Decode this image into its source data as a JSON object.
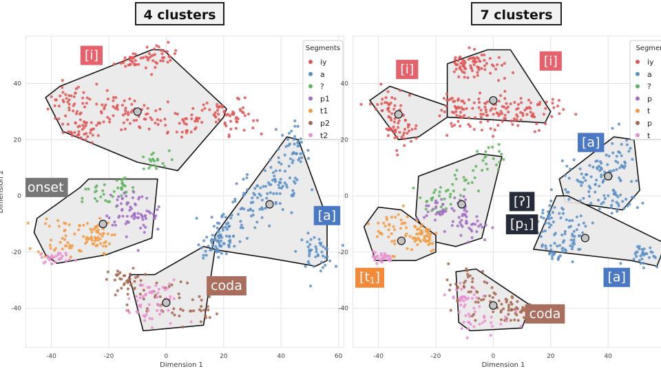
{
  "panels": [
    {
      "title": "4 clusters"
    },
    {
      "title": "7 clusters"
    }
  ],
  "colors": {
    "iy": "#e05555",
    "a": "#5b8fc7",
    "?": "#62b35e",
    "p1": "#a06cc4",
    "t1": "#f29a3f",
    "p2": "#a6674f",
    "t2": "#ea8ecf",
    "label_red": "#e8606a",
    "label_blue": "#4a78c5",
    "label_gray": "#767676",
    "label_orange": "#f28a3a",
    "label_brown": "#aa6e5e",
    "label_dark": "#252c38"
  },
  "chart_data": [
    {
      "type": "scatter",
      "title": "4 clusters",
      "xlabel": "Dimension 1",
      "ylabel": "Dimension 2",
      "xlim": [
        -49,
        62
      ],
      "ylim": [
        -54,
        57
      ],
      "xticks": [
        -40,
        -20,
        0,
        20,
        40,
        60
      ],
      "yticks": [
        -40,
        -20,
        0,
        20,
        40
      ],
      "grid": true,
      "legend": {
        "title": "Segments",
        "placement": "top-right",
        "entries": [
          "iy",
          "a",
          "?",
          "p1",
          "t1",
          "p2",
          "t2"
        ]
      },
      "series": [
        {
          "name": "iy",
          "clusters": [
            [
              -35,
              33,
              3,
              4
            ],
            [
              -28,
              23,
              3,
              2
            ],
            [
              -18,
              30,
              4,
              3
            ],
            [
              -8,
              28,
              4,
              3
            ],
            [
              5,
              26,
              5,
              3
            ],
            [
              18,
              30,
              5,
              3
            ],
            [
              25,
              28,
              3,
              3
            ],
            [
              -12,
              48,
              3,
              1.5
            ],
            [
              -2,
              50,
              3,
              2
            ],
            [
              -28,
              31,
              4,
              4
            ]
          ],
          "n": 300
        },
        {
          "name": "a",
          "clusters": [
            [
              44,
              15,
              3,
              5
            ],
            [
              40,
              4,
              4,
              6
            ],
            [
              30,
              -3,
              4,
              5
            ],
            [
              22,
              -12,
              4,
              4
            ],
            [
              18,
              -17,
              3,
              2
            ],
            [
              52,
              -20,
              3,
              3
            ]
          ],
          "n": 260
        },
        {
          "name": "?",
          "clusters": [
            [
              -5,
              12,
              3,
              2
            ],
            [
              -23,
              -1,
              3,
              3
            ],
            [
              -15,
              3,
              2,
              3
            ]
          ],
          "n": 60
        },
        {
          "name": "p1",
          "clusters": [
            [
              -13,
              -4,
              4,
              4
            ],
            [
              -9,
              -8,
              4,
              4
            ]
          ],
          "n": 70
        },
        {
          "name": "t1",
          "clusters": [
            [
              -35,
              -14,
              5,
              4
            ],
            [
              -25,
              -15,
              3,
              3
            ]
          ],
          "n": 90
        },
        {
          "name": "p2",
          "clusters": [
            [
              -6,
              -35,
              6,
              4
            ],
            [
              8,
              -40,
              5,
              3
            ],
            [
              -14,
              -30,
              3,
              2
            ]
          ],
          "n": 90
        },
        {
          "name": "t2",
          "clusters": [
            [
              -5,
              -42,
              6,
              3
            ],
            [
              -4,
              -34,
              4,
              2
            ],
            [
              -38,
              -22,
              3,
              1
            ]
          ],
          "n": 80
        }
      ],
      "hulls": [
        [
          [
            -42,
            35
          ],
          [
            -37,
            39
          ],
          [
            -5,
            52
          ],
          [
            -1,
            52
          ],
          [
            21,
            31
          ],
          [
            20,
            28
          ],
          [
            4,
            9
          ],
          [
            -10,
            12
          ],
          [
            -36,
            23
          ],
          [
            -42,
            35
          ]
        ],
        [
          [
            -42,
            -21
          ],
          [
            -46,
            -13
          ],
          [
            -45,
            -8
          ],
          [
            -30,
            3
          ],
          [
            -27,
            6
          ],
          [
            -3,
            6
          ],
          [
            -5,
            -15
          ],
          [
            -21,
            -21
          ],
          [
            -38,
            -24
          ],
          [
            -42,
            -21
          ]
        ],
        [
          [
            16,
            -19
          ],
          [
            17,
            -14
          ],
          [
            42,
            21
          ],
          [
            46,
            20
          ],
          [
            56,
            -8
          ],
          [
            56,
            -23
          ],
          [
            52,
            -25
          ],
          [
            35,
            -22
          ],
          [
            16,
            -19
          ]
        ],
        [
          [
            -12,
            -32
          ],
          [
            -13,
            -29
          ],
          [
            -12,
            -28
          ],
          [
            -4,
            -28
          ],
          [
            13,
            -18
          ],
          [
            17,
            -19
          ],
          [
            13,
            -46
          ],
          [
            -8,
            -48
          ],
          [
            -12,
            -32
          ]
        ]
      ],
      "centroids": [
        [
          -10,
          30
        ],
        [
          -22,
          -10
        ],
        [
          36,
          -3
        ],
        [
          0,
          -38
        ]
      ],
      "annotations": [
        {
          "text": "[i]",
          "x": -26,
          "y": 50,
          "color": "label_red"
        },
        {
          "text": "onset",
          "x": -42,
          "y": 3,
          "color": "label_gray"
        },
        {
          "text": "[a]",
          "x": 56,
          "y": -7,
          "color": "label_blue"
        },
        {
          "text": "coda",
          "x": 21,
          "y": -32,
          "color": "label_brown"
        }
      ]
    },
    {
      "type": "scatter",
      "title": "7 clusters",
      "xlabel": "Dimension 1",
      "xlim": [
        -49,
        62
      ],
      "ylim": [
        -54,
        57
      ],
      "xticks": [
        -40,
        -20,
        0,
        20,
        40
      ],
      "yticks": [
        -40,
        -20,
        0,
        20,
        40
      ],
      "grid": true,
      "legend": {
        "title": "Segmen",
        "placement": "top-right",
        "entries": [
          "iy",
          "a",
          "?",
          "p",
          "t",
          "p",
          "t"
        ]
      },
      "series": [
        {
          "name": "iy",
          "clusters": [
            [
              -37,
              31,
              3,
              4
            ],
            [
              -32,
              24,
              3,
              3
            ],
            [
              -12,
              30,
              3,
              3
            ],
            [
              -3,
              30,
              4,
              3
            ],
            [
              5,
              30,
              4,
              3
            ],
            [
              15,
              30,
              5,
              3
            ],
            [
              -4,
              46,
              4,
              3
            ],
            [
              -10,
              47,
              3,
              2
            ]
          ],
          "n": 300
        },
        {
          "name": "a",
          "clusters": [
            [
              45,
              12,
              3,
              5
            ],
            [
              38,
              7,
              4,
              4
            ],
            [
              43,
              -2,
              4,
              3
            ],
            [
              30,
              5,
              4,
              3
            ],
            [
              28,
              -13,
              3,
              4
            ],
            [
              22,
              -18,
              3,
              3
            ],
            [
              52,
              -21,
              3,
              2
            ],
            [
              18,
              -8,
              3,
              3
            ]
          ],
          "n": 260
        },
        {
          "name": "?",
          "clusters": [
            [
              -2,
              12,
              3,
              3
            ],
            [
              -13,
              3,
              3,
              3
            ],
            [
              -20,
              -2,
              3,
              3
            ]
          ],
          "n": 60
        },
        {
          "name": "p1",
          "clusters": [
            [
              -12,
              -7,
              3,
              4
            ],
            [
              -7,
              -10,
              3,
              3
            ],
            [
              -20,
              -5,
              2,
              2
            ]
          ],
          "n": 70
        },
        {
          "name": "t1",
          "clusters": [
            [
              -33,
              -12,
              4,
              4
            ],
            [
              -25,
              -14,
              3,
              3
            ]
          ],
          "n": 90
        },
        {
          "name": "p2",
          "clusters": [
            [
              -8,
              -32,
              4,
              4
            ],
            [
              2,
              -38,
              5,
              3
            ],
            [
              8,
              -41,
              3,
              2
            ]
          ],
          "n": 90
        },
        {
          "name": "t2",
          "clusters": [
            [
              -4,
              -44,
              5,
              3
            ],
            [
              -10,
              -36,
              3,
              2
            ],
            [
              -39,
              -22,
              2,
              1
            ]
          ],
          "n": 80
        }
      ],
      "hulls": [
        [
          [
            -43,
            34
          ],
          [
            -36,
            39
          ],
          [
            -16,
            32
          ],
          [
            -16,
            28
          ],
          [
            -26,
            21
          ],
          [
            -33,
            20
          ],
          [
            -43,
            34
          ]
        ],
        [
          [
            -16,
            28
          ],
          [
            -16,
            47
          ],
          [
            -2,
            52
          ],
          [
            6,
            52
          ],
          [
            20,
            30
          ],
          [
            18,
            26
          ],
          [
            -16,
            28
          ]
        ],
        [
          [
            -22,
            -16
          ],
          [
            -27,
            -7
          ],
          [
            -26,
            7
          ],
          [
            -5,
            15
          ],
          [
            3,
            14
          ],
          [
            -4,
            -15
          ],
          [
            -13,
            -18
          ],
          [
            -22,
            -16
          ]
        ],
        [
          [
            -45,
            -11
          ],
          [
            -40,
            -4
          ],
          [
            -32,
            -5
          ],
          [
            -20,
            -14
          ],
          [
            -20,
            -20
          ],
          [
            -27,
            -23
          ],
          [
            -41,
            -23
          ],
          [
            -45,
            -11
          ]
        ],
        [
          [
            23,
            6
          ],
          [
            42,
            21
          ],
          [
            49,
            20
          ],
          [
            51,
            2
          ],
          [
            45,
            -5
          ],
          [
            25,
            -2
          ],
          [
            23,
            6
          ]
        ],
        [
          [
            14,
            -19
          ],
          [
            22,
            0
          ],
          [
            26,
            0
          ],
          [
            60,
            -17
          ],
          [
            57,
            -25
          ],
          [
            48,
            -23
          ],
          [
            14,
            -19
          ]
        ],
        [
          [
            -13,
            -27
          ],
          [
            -12,
            -45
          ],
          [
            -8,
            -48
          ],
          [
            10,
            -47
          ],
          [
            13,
            -39
          ],
          [
            -6,
            -26
          ],
          [
            -13,
            -27
          ]
        ]
      ],
      "centroids": [
        [
          -33,
          29
        ],
        [
          0,
          34
        ],
        [
          -11,
          -3
        ],
        [
          -32,
          -16
        ],
        [
          40,
          7
        ],
        [
          32,
          -15
        ],
        [
          0,
          -39
        ]
      ],
      "annotations": [
        {
          "text": "[i]",
          "x": -30,
          "y": 45,
          "color": "label_red"
        },
        {
          "text": "[i]",
          "x": 20,
          "y": 48,
          "color": "label_red"
        },
        {
          "text": "[a]",
          "x": 34,
          "y": 19,
          "color": "label_blue"
        },
        {
          "text": "[ʔ]",
          "x": 10,
          "y": -2,
          "color": "label_dark"
        },
        {
          "text": "[p",
          "x": 10,
          "y": -10,
          "color": "label_dark",
          "sub": "1"
        },
        {
          "text": "[a]",
          "x": 43,
          "y": -29,
          "color": "label_blue"
        },
        {
          "text": "[t",
          "x": -43,
          "y": -29,
          "color": "label_orange",
          "sub": "1"
        },
        {
          "text": "coda",
          "x": 18,
          "y": -42,
          "color": "label_brown"
        }
      ]
    }
  ]
}
